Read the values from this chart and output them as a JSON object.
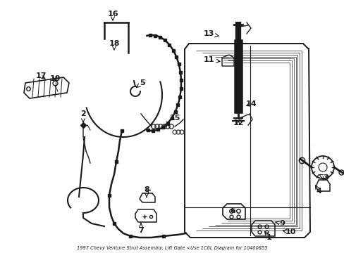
{
  "title": "1997 Chevy Venture Strut Assembly, Lift Gate <Use 1C6L Diagram for 10400855",
  "bg_color": "#ffffff",
  "line_color": "#1a1a1a",
  "figsize": [
    4.89,
    3.6
  ],
  "dpi": 100,
  "label_configs": [
    [
      "1",
      382,
      338,
      375,
      328
    ],
    [
      "2",
      118,
      162,
      118,
      175
    ],
    [
      "3",
      462,
      253,
      452,
      248
    ],
    [
      "4",
      452,
      272,
      447,
      263
    ],
    [
      "5",
      202,
      118,
      193,
      125
    ],
    [
      "6",
      330,
      300,
      336,
      305
    ],
    [
      "7",
      200,
      328,
      200,
      317
    ],
    [
      "8",
      208,
      270,
      208,
      281
    ],
    [
      "9",
      400,
      318,
      390,
      316
    ],
    [
      "10",
      412,
      330,
      400,
      328
    ],
    [
      "11",
      296,
      85,
      316,
      88
    ],
    [
      "12",
      338,
      175,
      338,
      168
    ],
    [
      "13",
      296,
      48,
      314,
      52
    ],
    [
      "14",
      356,
      148,
      346,
      152
    ],
    [
      "15",
      248,
      168,
      232,
      182
    ],
    [
      "16",
      160,
      20,
      160,
      30
    ],
    [
      "17",
      58,
      108,
      67,
      114
    ],
    [
      "18",
      162,
      62,
      162,
      72
    ],
    [
      "19",
      78,
      112,
      78,
      118
    ]
  ]
}
